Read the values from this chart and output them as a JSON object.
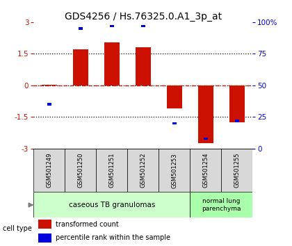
{
  "title": "GDS4256 / Hs.76325.0.A1_3p_at",
  "samples": [
    "GSM501249",
    "GSM501250",
    "GSM501251",
    "GSM501252",
    "GSM501253",
    "GSM501254",
    "GSM501255"
  ],
  "red_values": [
    0.02,
    1.7,
    2.05,
    1.8,
    -1.1,
    -2.75,
    -1.75
  ],
  "blue_values": [
    35,
    95,
    97,
    97,
    20,
    8,
    22
  ],
  "ylim": [
    -3,
    3
  ],
  "right_ylim": [
    0,
    100
  ],
  "right_yticks": [
    0,
    25,
    50,
    75,
    100
  ],
  "right_yticklabels": [
    "0",
    "25",
    "50",
    "75",
    "100%"
  ],
  "left_yticks": [
    -3,
    -1.5,
    0,
    1.5,
    3
  ],
  "left_yticklabels": [
    "-3",
    "-1.5",
    "0",
    "1.5",
    "3"
  ],
  "dotted_lines_black": [
    -1.5,
    1.5
  ],
  "dotted_line_red": 0,
  "dotted_line_black_zero": 0,
  "bar_width": 0.5,
  "blue_sq_size": 0.12,
  "red_color": "#cc1100",
  "blue_color": "#0000dd",
  "group1_indices": [
    0,
    1,
    2,
    3,
    4
  ],
  "group2_indices": [
    5,
    6
  ],
  "group1_label": "caseous TB granulomas",
  "group2_label": "normal lung\nparenchyma",
  "group1_color": "#ccffcc",
  "group2_color": "#aaffaa",
  "xlabel_row_color": "#d8d8d8",
  "cell_type_label": "cell type",
  "legend_red": "transformed count",
  "legend_blue": "percentile rank within the sample",
  "title_fontsize": 10,
  "tick_fontsize": 7.5,
  "bar_label_fontsize": 6,
  "group_label_fontsize": 7.5,
  "legend_fontsize": 7
}
